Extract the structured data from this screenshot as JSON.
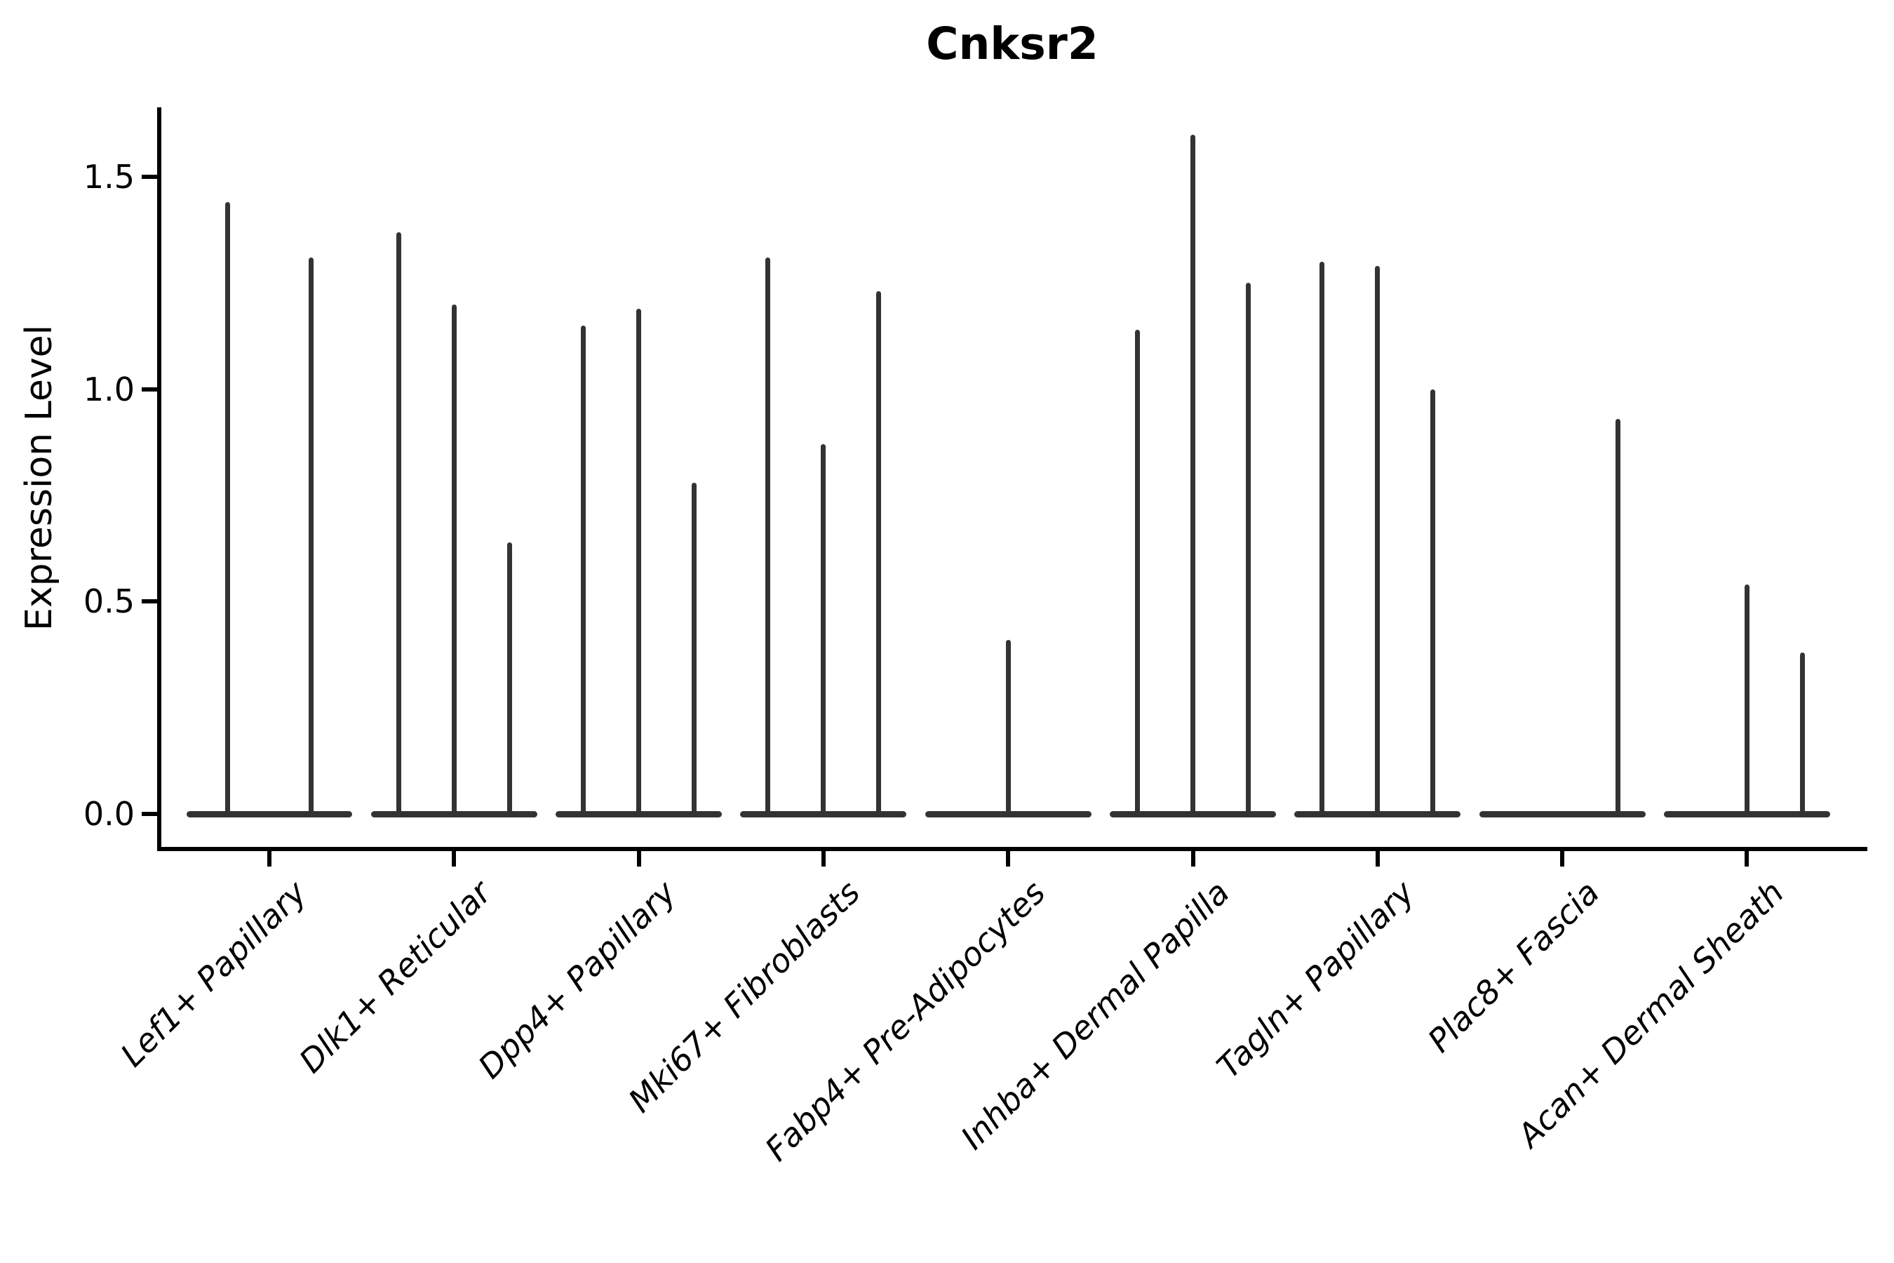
{
  "figure": {
    "background": "#ffffff",
    "axis_color": "#000000",
    "violin_color": "#333333"
  },
  "chart_data": {
    "type": "violin",
    "title": "Cnksr2",
    "xlabel": "",
    "ylabel": "Expression Level",
    "ylim": [
      -0.08,
      1.66
    ],
    "grid": false,
    "legend": "none",
    "yticks": [
      {
        "label": "0.0",
        "value": 0.0
      },
      {
        "label": "0.5",
        "value": 0.5
      },
      {
        "label": "1.0",
        "value": 1.0
      },
      {
        "label": "1.5",
        "value": 1.5
      }
    ],
    "body_halfwidth": 0.45,
    "categories": [
      {
        "label": "Lef1+ Papillary",
        "violins": [
          {
            "offset": -0.225,
            "max": 1.44
          },
          {
            "offset": 0.225,
            "max": 1.31
          }
        ]
      },
      {
        "label": "Dlk1+ Reticular",
        "violins": [
          {
            "offset": -0.3,
            "max": 1.37
          },
          {
            "offset": 0,
            "max": 1.2
          },
          {
            "offset": 0.3,
            "max": 0.64
          }
        ]
      },
      {
        "label": "Dpp4+ Papillary",
        "violins": [
          {
            "offset": -0.3,
            "max": 1.15
          },
          {
            "offset": 0,
            "max": 1.19
          },
          {
            "offset": 0.3,
            "max": 0.78
          }
        ]
      },
      {
        "label": "Mki67+ Fibroblasts",
        "violins": [
          {
            "offset": -0.3,
            "max": 1.31
          },
          {
            "offset": 0,
            "max": 0.87
          },
          {
            "offset": 0.3,
            "max": 1.23
          }
        ]
      },
      {
        "label": "Fabp4+ Pre-Adipocytes",
        "violins": [
          {
            "offset": 0,
            "max": 0.41
          }
        ]
      },
      {
        "label": "Inhba+ Dermal Papilla",
        "violins": [
          {
            "offset": -0.3,
            "max": 1.14
          },
          {
            "offset": 0,
            "max": 1.6
          },
          {
            "offset": 0.3,
            "max": 1.25
          }
        ]
      },
      {
        "label": "Tagln+ Papillary",
        "violins": [
          {
            "offset": -0.3,
            "max": 1.3
          },
          {
            "offset": 0,
            "max": 1.29
          },
          {
            "offset": 0.3,
            "max": 1.0
          }
        ]
      },
      {
        "label": "Plac8+ Fascia",
        "violins": [
          {
            "offset": 0.3,
            "max": 0.93
          }
        ]
      },
      {
        "label": "Acan+ Dermal Sheath",
        "violins": [
          {
            "offset": 0,
            "max": 0.54
          },
          {
            "offset": 0.3,
            "max": 0.38
          }
        ]
      }
    ]
  }
}
